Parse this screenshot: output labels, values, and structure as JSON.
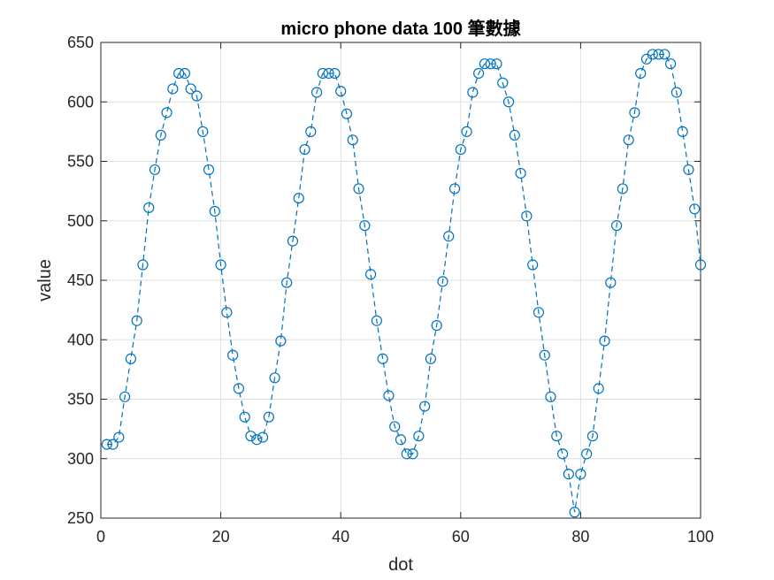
{
  "chart_data": {
    "type": "line",
    "title": "micro phone data 100 筆數據",
    "xlabel": "dot",
    "ylabel": "value",
    "xlim": [
      0,
      100
    ],
    "ylim": [
      250,
      650
    ],
    "xticks": [
      0,
      20,
      40,
      60,
      80,
      100
    ],
    "yticks": [
      250,
      300,
      350,
      400,
      450,
      500,
      550,
      600,
      650
    ],
    "grid": true,
    "line_style": "dashed",
    "marker": "circle",
    "series_color": "#0072BD",
    "series": [
      {
        "x": [
          1,
          2,
          3,
          4,
          5,
          6,
          7,
          8,
          9,
          10,
          11,
          12,
          13,
          14,
          15,
          16,
          17,
          18,
          19,
          20,
          21,
          22,
          23,
          24,
          25,
          26,
          27,
          28,
          29,
          30,
          31,
          32,
          33,
          34,
          35,
          36,
          37,
          38,
          39,
          40,
          41,
          42,
          43,
          44,
          45,
          46,
          47,
          48,
          49,
          50,
          51,
          52,
          53,
          54,
          55,
          56,
          57,
          58,
          59,
          60,
          61,
          62,
          63,
          64,
          65,
          66,
          67,
          68,
          69,
          70,
          71,
          72,
          73,
          74,
          75,
          76,
          77,
          78,
          79,
          80,
          81,
          82,
          83,
          84,
          85,
          86,
          87,
          88,
          89,
          90,
          91,
          92,
          93,
          94,
          95,
          96,
          97,
          98,
          99,
          100
        ],
        "values": [
          312,
          312,
          318,
          352,
          384,
          416,
          463,
          511,
          543,
          572,
          591,
          611,
          624,
          624,
          611,
          605,
          575,
          543,
          508,
          463,
          423,
          387,
          359,
          335,
          319,
          316,
          318,
          335,
          368,
          399,
          448,
          483,
          519,
          560,
          575,
          608,
          624,
          624,
          624,
          609,
          590,
          568,
          527,
          496,
          455,
          416,
          384,
          353,
          327,
          316,
          304,
          304,
          319,
          344,
          384,
          412,
          449,
          487,
          527,
          560,
          575,
          608,
          624,
          632,
          632,
          632,
          616,
          600,
          572,
          540,
          504,
          463,
          423,
          387,
          352,
          319,
          304,
          287,
          255,
          287,
          304,
          319,
          359,
          399,
          448,
          496,
          527,
          568,
          591,
          624,
          636,
          640,
          640,
          640,
          632,
          608,
          575,
          543,
          510,
          463
        ]
      }
    ]
  }
}
